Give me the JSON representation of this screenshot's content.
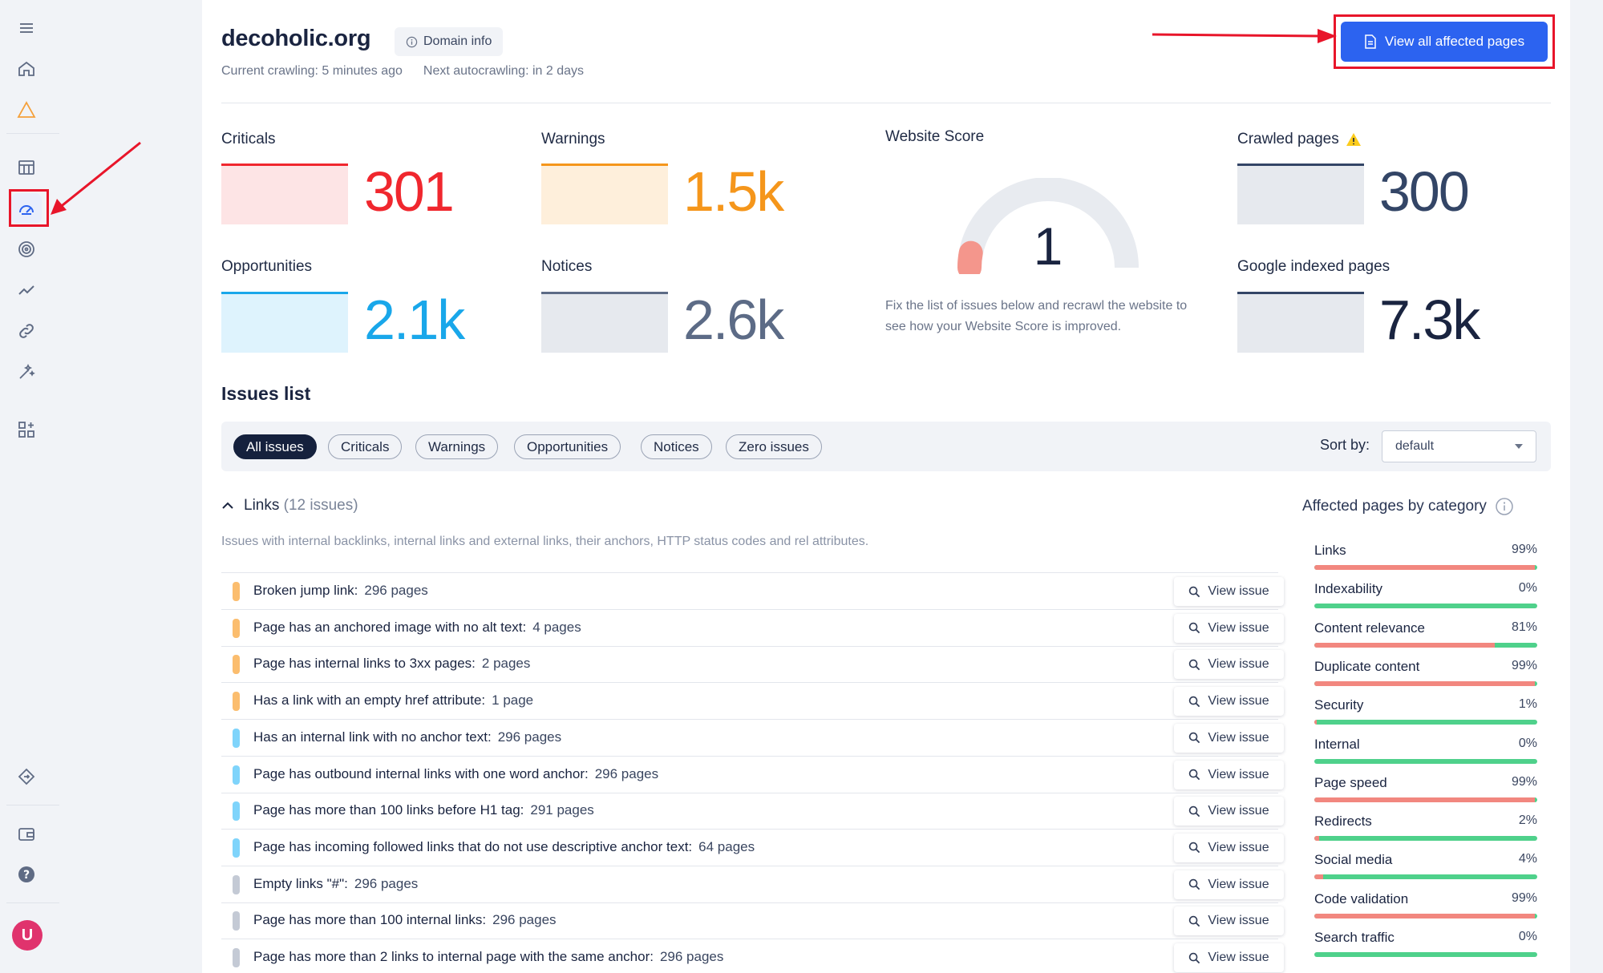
{
  "colors": {
    "critical": "#f0272e",
    "warning": "#f5961b",
    "opportunity": "#19a7ea",
    "notice": "#5c6b86",
    "primary": "#2c63f0",
    "good": "#4fd18b",
    "bad": "#f2877f",
    "highlight": "#e8152a"
  },
  "sidebar": {
    "icons": [
      "menu-icon",
      "home-icon",
      "warning-triangle-icon",
      "table-icon",
      "speedometer-icon",
      "target-icon",
      "trend-icon",
      "link-icon",
      "magic-wand-icon",
      "add-widget-icon",
      "diamond-icon",
      "wallet-icon",
      "help-icon"
    ],
    "avatar": "U"
  },
  "header": {
    "domain": "decoholic.org",
    "domain_info": "Domain info",
    "current_crawling": "Current crawling: 5 minutes ago",
    "next_autocrawling": "Next autocrawling: in 2 days",
    "view_all_button": "View all affected pages"
  },
  "stats": {
    "criticals": {
      "label": "Criticals",
      "value": "301"
    },
    "warnings": {
      "label": "Warnings",
      "value": "1.5k"
    },
    "opportunities": {
      "label": "Opportunities",
      "value": "2.1k"
    },
    "notices": {
      "label": "Notices",
      "value": "2.6k"
    },
    "crawled_pages": {
      "label": "Crawled pages",
      "value": "300"
    },
    "google_indexed": {
      "label": "Google indexed pages",
      "value": "7.3k"
    }
  },
  "website_score": {
    "title": "Website Score",
    "value": "1",
    "fraction": 0.01,
    "note": "Fix the list of issues below and recrawl the website to see how your Website Score is improved."
  },
  "issues": {
    "title": "Issues list",
    "filters": [
      "All issues",
      "Criticals",
      "Warnings",
      "Opportunities",
      "Notices",
      "Zero issues"
    ],
    "active_filter": 0,
    "sort_label": "Sort by:",
    "sort_value": "default",
    "category": {
      "name": "Links",
      "count": "(12 issues)",
      "description": "Issues with internal backlinks, internal links and external links, their anchors, HTTP status codes and rel attributes."
    },
    "view_issue_label": "View issue",
    "rows": [
      {
        "severity": "warning",
        "text": "Broken jump link:",
        "pages": "296 pages"
      },
      {
        "severity": "warning",
        "text": "Page has an anchored image with no alt text:",
        "pages": "4 pages"
      },
      {
        "severity": "warning",
        "text": "Page has internal links to 3xx pages:",
        "pages": "2 pages"
      },
      {
        "severity": "warning",
        "text": "Has a link with an empty href attribute:",
        "pages": "1 page"
      },
      {
        "severity": "opportunity",
        "text": "Has an internal link with no anchor text:",
        "pages": "296 pages"
      },
      {
        "severity": "opportunity",
        "text": "Page has outbound internal links with one word anchor:",
        "pages": "296 pages"
      },
      {
        "severity": "opportunity",
        "text": "Page has more than 100 links before H1 tag:",
        "pages": "291 pages"
      },
      {
        "severity": "opportunity",
        "text": "Page has incoming followed links that do not use descriptive anchor text:",
        "pages": "64 pages"
      },
      {
        "severity": "notice",
        "text": "Empty links \"#\":",
        "pages": "296 pages"
      },
      {
        "severity": "notice",
        "text": "Page has more than 100 internal links:",
        "pages": "296 pages"
      },
      {
        "severity": "notice",
        "text": "Page has more than 2 links to internal page with the same anchor:",
        "pages": "296 pages"
      }
    ]
  },
  "affected": {
    "title": "Affected pages by category",
    "items": [
      {
        "name": "Links",
        "pct": "99%",
        "value": 0.99
      },
      {
        "name": "Indexability",
        "pct": "0%",
        "value": 0.0
      },
      {
        "name": "Content relevance",
        "pct": "81%",
        "value": 0.81
      },
      {
        "name": "Duplicate content",
        "pct": "99%",
        "value": 0.99
      },
      {
        "name": "Security",
        "pct": "1%",
        "value": 0.01
      },
      {
        "name": "Internal",
        "pct": "0%",
        "value": 0.0
      },
      {
        "name": "Page speed",
        "pct": "99%",
        "value": 0.99
      },
      {
        "name": "Redirects",
        "pct": "2%",
        "value": 0.02
      },
      {
        "name": "Social media",
        "pct": "4%",
        "value": 0.04
      },
      {
        "name": "Code validation",
        "pct": "99%",
        "value": 0.99
      },
      {
        "name": "Search traffic",
        "pct": "0%",
        "value": 0.0
      }
    ]
  }
}
